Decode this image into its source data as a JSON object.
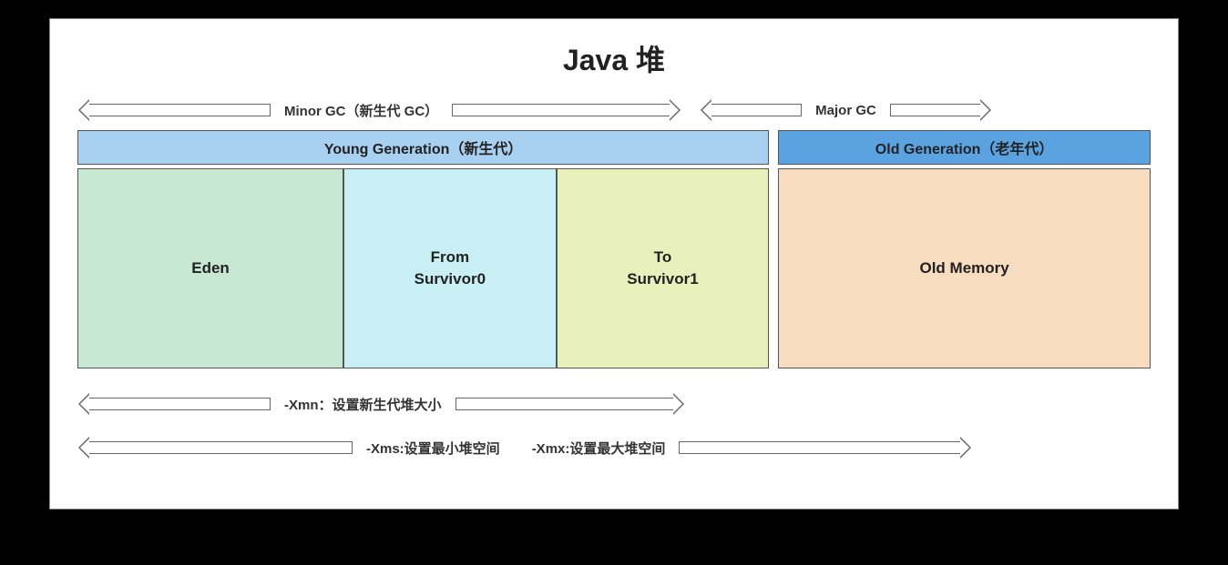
{
  "title": "Java 堆",
  "gcLabels": {
    "minor": "Minor GC（新生代 GC）",
    "major": "Major GC"
  },
  "generations": {
    "young": {
      "label": "Young Generation（新生代）",
      "color": "#a8d0f0",
      "widthPct": 65
    },
    "old": {
      "label": "Old Generation（老年代）",
      "color": "#5ba3e0",
      "widthPct": 35
    }
  },
  "memoryBlocks": {
    "eden": {
      "label": "Eden",
      "color": "#c8e8d4",
      "widthPct": 25
    },
    "survivor0": {
      "line1": "From",
      "line2": "Survivor0",
      "color": "#c8f0f4",
      "widthPct": 20
    },
    "survivor1": {
      "line1": "To",
      "line2": "Survivor1",
      "color": "#e8f0bc",
      "widthPct": 20
    },
    "oldMemory": {
      "label": "Old Memory",
      "color": "#f8dcc0",
      "widthPct": 35
    }
  },
  "jvmParams": {
    "xmn": "-Xmn：设置新生代堆大小",
    "xms": "-Xms:设置最小堆空间",
    "xmx": "-Xmx:设置最大堆空间"
  },
  "layout": {
    "youngWidthPct": 65,
    "oldWidthPct": 35,
    "gap": 10
  }
}
